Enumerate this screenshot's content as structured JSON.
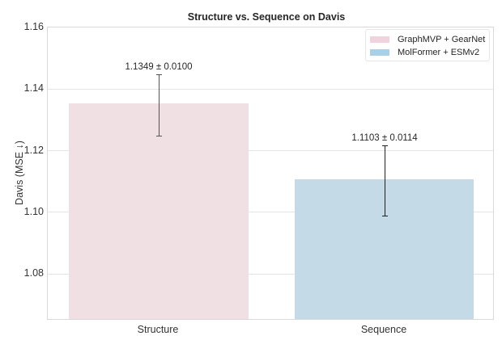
{
  "chart_data": {
    "type": "bar",
    "title": "Structure vs. Sequence on Davis",
    "xlabel": "",
    "ylabel": "Davis (MSE ↓)",
    "categories": [
      "Structure",
      "Sequence"
    ],
    "values": [
      1.1349,
      1.1103
    ],
    "errors": [
      0.01,
      0.0114
    ],
    "value_labels": [
      "1.1349 ± 0.0100",
      "1.1103 ± 0.0114"
    ],
    "series": [
      {
        "name": "GraphMVP + GearNet",
        "category": "Structure",
        "value": 1.1349,
        "error": 0.01,
        "color": "#f0dfe3"
      },
      {
        "name": "MolFormer + ESMv2",
        "category": "Sequence",
        "value": 1.1103,
        "error": 0.0114,
        "color": "#c5dae7"
      }
    ],
    "ylim": [
      1.065,
      1.16
    ],
    "yticks": [
      "1.16",
      "1.14",
      "1.12",
      "1.10",
      "1.08"
    ],
    "grid": true,
    "legend_position": "upper right"
  },
  "legend": {
    "items": [
      {
        "label": "GraphMVP + GearNet",
        "color": "#f0dfe3"
      },
      {
        "label": "MolFormer + ESMv2",
        "color": "#a9d0e6"
      }
    ]
  }
}
